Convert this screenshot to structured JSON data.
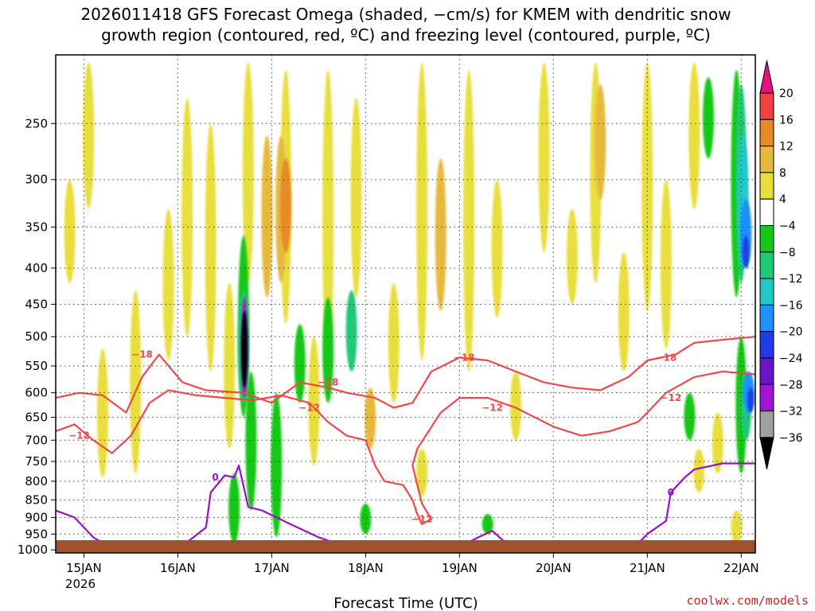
{
  "chart_data": {
    "type": "heatmap",
    "title_line1": "2026011418 GFS Forecast Omega (shaded, −cm/s) for KMEM with dendritic snow",
    "title_line2": "growth region (contoured, red, ºC) and freezing level (contoured, purple, ºC)",
    "xlabel": "Forecast Time (UTC)",
    "credit": "coolwx.com/models",
    "x_start_label": "15JAN",
    "x_year": "2026",
    "x_ticks": [
      "15JAN",
      "16JAN",
      "17JAN",
      "18JAN",
      "19JAN",
      "20JAN",
      "21JAN",
      "22JAN"
    ],
    "x_range_days": [
      -0.3,
      7.15
    ],
    "y_ticks": [
      250,
      300,
      350,
      400,
      450,
      500,
      550,
      600,
      650,
      700,
      750,
      800,
      850,
      900,
      950,
      1000
    ],
    "y_range_hpa": [
      200,
      1010
    ],
    "colorbar": {
      "tick_labels": [
        "20",
        "16",
        "12",
        "8",
        "4",
        "−4",
        "−8",
        "−12",
        "−16",
        "−20",
        "−24",
        "−28",
        "−32",
        "−36"
      ],
      "bins": [
        {
          "lo": 20,
          "hi": 24,
          "color": "#e8107a"
        },
        {
          "lo": 16,
          "hi": 20,
          "color": "#f04040"
        },
        {
          "lo": 12,
          "hi": 16,
          "color": "#e88a28"
        },
        {
          "lo": 8,
          "hi": 12,
          "color": "#e6b93c"
        },
        {
          "lo": 4,
          "hi": 8,
          "color": "#e8de3c"
        },
        {
          "lo": -4,
          "hi": 4,
          "color": "#ffffff"
        },
        {
          "lo": -8,
          "hi": -4,
          "color": "#18c818"
        },
        {
          "lo": -12,
          "hi": -8,
          "color": "#22c87a"
        },
        {
          "lo": -16,
          "hi": -12,
          "color": "#20c8c8"
        },
        {
          "lo": -20,
          "hi": -16,
          "color": "#1e90ff"
        },
        {
          "lo": -24,
          "hi": -20,
          "color": "#1e3ce8"
        },
        {
          "lo": -28,
          "hi": -24,
          "color": "#6a14c8"
        },
        {
          "lo": -32,
          "hi": -28,
          "color": "#a014d2"
        },
        {
          "lo": -36,
          "hi": -32,
          "color": "#a0a0a0"
        },
        {
          "lo": -40,
          "hi": -36,
          "color": "#000000"
        }
      ]
    },
    "omega_blobs": [
      {
        "t": 0.05,
        "p0": 205,
        "p1": 330,
        "v": 6
      },
      {
        "t": 0.2,
        "p0": 520,
        "p1": 790,
        "v": 5
      },
      {
        "t": -0.15,
        "p0": 300,
        "p1": 420,
        "v": 5
      },
      {
        "t": 0.55,
        "p0": 430,
        "p1": 780,
        "v": 6
      },
      {
        "t": 0.9,
        "p0": 330,
        "p1": 540,
        "v": 5
      },
      {
        "t": 1.1,
        "p0": 230,
        "p1": 500,
        "v": 6
      },
      {
        "t": 1.35,
        "p0": 250,
        "p1": 560,
        "v": 5
      },
      {
        "t": 1.55,
        "p0": 420,
        "p1": 720,
        "v": 6
      },
      {
        "t": 1.75,
        "p0": 205,
        "p1": 420,
        "v": 6
      },
      {
        "t": 1.95,
        "p0": 260,
        "p1": 440,
        "v": 9
      },
      {
        "t": 2.15,
        "p0": 210,
        "p1": 480,
        "v": 6
      },
      {
        "t": 2.1,
        "p0": 260,
        "p1": 420,
        "v": 10
      },
      {
        "t": 2.15,
        "p0": 280,
        "p1": 380,
        "v": 13
      },
      {
        "t": 2.45,
        "p0": 500,
        "p1": 760,
        "v": 6
      },
      {
        "t": 2.6,
        "p0": 210,
        "p1": 560,
        "v": 7
      },
      {
        "t": 2.9,
        "p0": 230,
        "p1": 440,
        "v": 6
      },
      {
        "t": 3.05,
        "p0": 590,
        "p1": 720,
        "v": 9
      },
      {
        "t": 3.3,
        "p0": 420,
        "p1": 620,
        "v": 6
      },
      {
        "t": 3.6,
        "p0": 205,
        "p1": 540,
        "v": 6
      },
      {
        "t": 3.8,
        "p0": 280,
        "p1": 460,
        "v": 9
      },
      {
        "t": 4.1,
        "p0": 210,
        "p1": 560,
        "v": 6
      },
      {
        "t": 4.4,
        "p0": 300,
        "p1": 470,
        "v": 5
      },
      {
        "t": 4.6,
        "p0": 560,
        "p1": 700,
        "v": 5
      },
      {
        "t": 4.9,
        "p0": 205,
        "p1": 380,
        "v": 6
      },
      {
        "t": 5.2,
        "p0": 330,
        "p1": 450,
        "v": 5
      },
      {
        "t": 5.45,
        "p0": 205,
        "p1": 420,
        "v": 6
      },
      {
        "t": 5.5,
        "p0": 220,
        "p1": 320,
        "v": 9
      },
      {
        "t": 5.75,
        "p0": 380,
        "p1": 560,
        "v": 6
      },
      {
        "t": 6.0,
        "p0": 205,
        "p1": 460,
        "v": 6
      },
      {
        "t": 6.2,
        "p0": 300,
        "p1": 520,
        "v": 6
      },
      {
        "t": 6.5,
        "p0": 205,
        "p1": 330,
        "v": 6
      },
      {
        "t": 6.75,
        "p0": 640,
        "p1": 780,
        "v": 5
      },
      {
        "t": 6.55,
        "p0": 720,
        "p1": 830,
        "v": 5
      },
      {
        "t": 6.95,
        "p0": 880,
        "p1": 980,
        "v": 5
      },
      {
        "t": 3.6,
        "p0": 720,
        "p1": 840,
        "v": 5
      },
      {
        "t": 1.6,
        "p0": 780,
        "p1": 980,
        "v": -5
      },
      {
        "t": 1.78,
        "p0": 560,
        "p1": 880,
        "v": -6
      },
      {
        "t": 2.05,
        "p0": 600,
        "p1": 960,
        "v": -5
      },
      {
        "t": 1.7,
        "p0": 360,
        "p1": 650,
        "v": -6
      },
      {
        "t": 1.7,
        "p0": 430,
        "p1": 620,
        "v": -9
      },
      {
        "t": 1.71,
        "p0": 440,
        "p1": 610,
        "v": -30
      },
      {
        "t": 1.71,
        "p0": 460,
        "p1": 590,
        "v": -38
      },
      {
        "t": 2.3,
        "p0": 480,
        "p1": 620,
        "v": -6
      },
      {
        "t": 2.6,
        "p0": 440,
        "p1": 620,
        "v": -6
      },
      {
        "t": 2.85,
        "p0": 430,
        "p1": 560,
        "v": -10
      },
      {
        "t": 3.0,
        "p0": 860,
        "p1": 950,
        "v": -6
      },
      {
        "t": 4.3,
        "p0": 890,
        "p1": 950,
        "v": -6
      },
      {
        "t": 6.45,
        "p0": 600,
        "p1": 700,
        "v": -6
      },
      {
        "t": 6.65,
        "p0": 215,
        "p1": 280,
        "v": -6
      },
      {
        "t": 6.95,
        "p0": 210,
        "p1": 440,
        "v": -6
      },
      {
        "t": 7.0,
        "p0": 220,
        "p1": 420,
        "v": -10
      },
      {
        "t": 7.02,
        "p0": 260,
        "p1": 400,
        "v": -14
      },
      {
        "t": 7.05,
        "p0": 320,
        "p1": 400,
        "v": -18
      },
      {
        "t": 7.05,
        "p0": 360,
        "p1": 400,
        "v": -22
      },
      {
        "t": 7.0,
        "p0": 500,
        "p1": 780,
        "v": -6
      },
      {
        "t": 7.05,
        "p0": 560,
        "p1": 700,
        "v": -12
      },
      {
        "t": 7.08,
        "p0": 560,
        "p1": 640,
        "v": -18
      },
      {
        "t": 7.1,
        "p0": 590,
        "p1": 640,
        "v": -22
      }
    ],
    "dgz_minus18": {
      "label": "−18",
      "label_at": [
        [
          0.62,
          530
        ],
        [
          2.6,
          580
        ],
        [
          4.05,
          535
        ],
        [
          6.2,
          535
        ]
      ],
      "points": [
        [
          -0.3,
          610
        ],
        [
          -0.05,
          600
        ],
        [
          0.2,
          605
        ],
        [
          0.45,
          640
        ],
        [
          0.62,
          570
        ],
        [
          0.8,
          530
        ],
        [
          1.05,
          580
        ],
        [
          1.3,
          595
        ],
        [
          1.7,
          600
        ],
        [
          2.0,
          620
        ],
        [
          2.3,
          580
        ],
        [
          2.6,
          590
        ],
        [
          2.8,
          600
        ],
        [
          3.1,
          610
        ],
        [
          3.3,
          630
        ],
        [
          3.5,
          620
        ],
        [
          3.7,
          560
        ],
        [
          4.0,
          535
        ],
        [
          4.3,
          540
        ],
        [
          4.6,
          560
        ],
        [
          4.9,
          580
        ],
        [
          5.2,
          590
        ],
        [
          5.5,
          595
        ],
        [
          5.8,
          570
        ],
        [
          6.0,
          540
        ],
        [
          6.3,
          530
        ],
        [
          6.5,
          510
        ],
        [
          6.8,
          505
        ],
        [
          7.15,
          500
        ]
      ]
    },
    "dgz_minus12": {
      "label": "−12",
      "label_at": [
        [
          -0.05,
          690
        ],
        [
          2.4,
          630
        ],
        [
          3.6,
          905
        ],
        [
          4.35,
          630
        ],
        [
          6.25,
          610
        ]
      ],
      "points": [
        [
          -0.3,
          680
        ],
        [
          -0.1,
          665
        ],
        [
          0.1,
          700
        ],
        [
          0.3,
          730
        ],
        [
          0.5,
          690
        ],
        [
          0.7,
          620
        ],
        [
          0.9,
          595
        ],
        [
          1.2,
          605
        ],
        [
          1.5,
          610
        ],
        [
          1.8,
          615
        ],
        [
          2.1,
          605
        ],
        [
          2.4,
          620
        ],
        [
          2.6,
          660
        ],
        [
          2.8,
          690
        ],
        [
          3.0,
          700
        ],
        [
          3.1,
          760
        ],
        [
          3.2,
          800
        ],
        [
          3.4,
          810
        ],
        [
          3.5,
          850
        ],
        [
          3.55,
          890
        ],
        [
          3.6,
          920
        ],
        [
          3.7,
          905
        ],
        [
          3.6,
          860
        ],
        [
          3.5,
          760
        ],
        [
          3.55,
          720
        ],
        [
          3.8,
          640
        ],
        [
          4.0,
          610
        ],
        [
          4.3,
          610
        ],
        [
          4.6,
          630
        ],
        [
          5.0,
          670
        ],
        [
          5.3,
          690
        ],
        [
          5.6,
          680
        ],
        [
          5.9,
          660
        ],
        [
          6.0,
          640
        ],
        [
          6.2,
          600
        ],
        [
          6.5,
          570
        ],
        [
          6.8,
          560
        ],
        [
          7.15,
          565
        ]
      ]
    },
    "freezing_level": {
      "label": "0",
      "label_at": [
        [
          1.4,
          790
        ],
        [
          3.0,
          985
        ],
        [
          6.25,
          830
        ]
      ],
      "points": [
        [
          -0.3,
          880
        ],
        [
          -0.1,
          900
        ],
        [
          0.1,
          960
        ],
        [
          0.3,
          995
        ],
        [
          0.8,
          1000
        ],
        [
          1.1,
          975
        ],
        [
          1.3,
          930
        ],
        [
          1.35,
          830
        ],
        [
          1.5,
          785
        ],
        [
          1.6,
          790
        ],
        [
          1.65,
          760
        ],
        [
          1.75,
          870
        ],
        [
          1.9,
          880
        ],
        [
          2.2,
          920
        ],
        [
          2.5,
          960
        ],
        [
          2.8,
          990
        ],
        [
          3.0,
          985
        ],
        [
          3.3,
          995
        ],
        [
          4.0,
          990
        ],
        [
          4.2,
          960
        ],
        [
          4.35,
          940
        ],
        [
          4.5,
          980
        ],
        [
          4.8,
          990
        ],
        [
          5.2,
          1000
        ],
        [
          5.5,
          995
        ],
        [
          5.9,
          980
        ],
        [
          6.0,
          950
        ],
        [
          6.2,
          910
        ],
        [
          6.25,
          830
        ],
        [
          6.4,
          790
        ],
        [
          6.5,
          770
        ],
        [
          6.8,
          755
        ],
        [
          7.15,
          755
        ]
      ]
    }
  }
}
